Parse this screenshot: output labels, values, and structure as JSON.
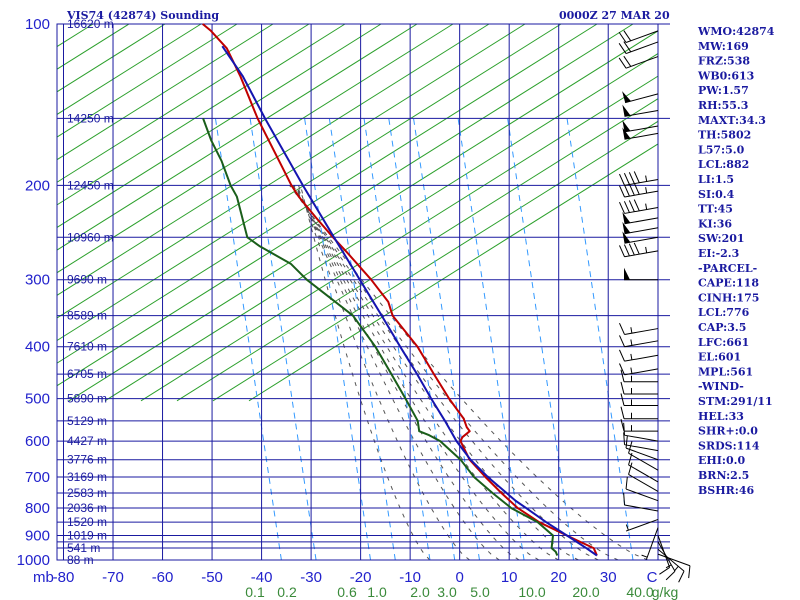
{
  "header": {
    "station_title": "VIS74 (42874) Sounding",
    "time_title": "0000Z 27 MAR 20"
  },
  "colors": {
    "grid": "#1a1aa0",
    "dry_adiabat": "#2ca02c",
    "moist_adiabat": "#555555",
    "mixing_ratio": "#3399ff",
    "temperature": "#c00000",
    "dewpoint": "#1a5e1a",
    "parcel": "#1515b0",
    "mixing_label": "#3a8a3a"
  },
  "chart_data": {
    "type": "line",
    "title": "VIS74 (42874) Sounding",
    "xlabel": "",
    "ylabel": "mb",
    "x_unit_label": "C",
    "xlim": [
      -80,
      35
    ],
    "ylim": [
      1000,
      100
    ],
    "log_y": true,
    "grid": true,
    "pressure_ticks": [
      100,
      200,
      300,
      400,
      500,
      600,
      700,
      800,
      900,
      1000
    ],
    "pressure_minor_lines": [
      150,
      250,
      350,
      450,
      550,
      650,
      750,
      850,
      925,
      950
    ],
    "temp_ticks": [
      -80,
      -70,
      -60,
      -50,
      -40,
      -30,
      -20,
      -10,
      0,
      10,
      20,
      30
    ],
    "temp_tick_labels": [
      "-80",
      "-70",
      "-60",
      "-50",
      "-40",
      "-30",
      "-20",
      "-10",
      "0",
      "10",
      "20",
      "30",
      "C"
    ],
    "mixing_ratio_labels": [
      "0.1",
      "0.2",
      "0.6",
      "1.0",
      "2.0",
      "3.0",
      "5.0",
      "10.0",
      "20.0",
      "40.0",
      "g/kg"
    ],
    "height_labels": [
      {
        "p": 100,
        "label": "16620 m"
      },
      {
        "p": 150,
        "label": "14250 m"
      },
      {
        "p": 200,
        "label": "12450 m"
      },
      {
        "p": 250,
        "label": "10960 m"
      },
      {
        "p": 300,
        "label": "9690 m"
      },
      {
        "p": 350,
        "label": "8589 m"
      },
      {
        "p": 400,
        "label": "7610 m"
      },
      {
        "p": 450,
        "label": "6705 m"
      },
      {
        "p": 500,
        "label": "5890 m"
      },
      {
        "p": 550,
        "label": "5129 m"
      },
      {
        "p": 600,
        "label": "4427 m"
      },
      {
        "p": 650,
        "label": "3776 m"
      },
      {
        "p": 700,
        "label": "3169 m"
      },
      {
        "p": 750,
        "label": "2583 m"
      },
      {
        "p": 800,
        "label": "2036 m"
      },
      {
        "p": 850,
        "label": "1520 m"
      },
      {
        "p": 900,
        "label": "1019 m"
      },
      {
        "p": 950,
        "label": "541 m"
      },
      {
        "p": 1000,
        "label": "88 m"
      }
    ],
    "series": [
      {
        "key": "temperature",
        "points": [
          [
            981,
            27.5
          ],
          [
            965,
            27
          ],
          [
            950,
            26.5
          ],
          [
            925,
            23.5
          ],
          [
            900,
            20.5
          ],
          [
            850,
            14.3
          ],
          [
            800,
            9.3
          ],
          [
            750,
            5.3
          ],
          [
            700,
            1.3
          ],
          [
            650,
            -2.7
          ],
          [
            600,
            -5.4
          ],
          [
            590,
            -5.2
          ],
          [
            575,
            -4.0
          ],
          [
            565,
            -4.8
          ],
          [
            545,
            -5.8
          ],
          [
            500,
            -9.7
          ],
          [
            450,
            -13.9
          ],
          [
            400,
            -18.5
          ],
          [
            350,
            -25.0
          ],
          [
            330,
            -26.5
          ],
          [
            300,
            -31.0
          ],
          [
            265,
            -37.5
          ],
          [
            250,
            -40.7
          ],
          [
            230,
            -45.0
          ],
          [
            210,
            -49.5
          ],
          [
            200,
            -51.5
          ],
          [
            150,
            -61.5
          ],
          [
            125,
            -67
          ],
          [
            111,
            -71
          ],
          [
            103,
            -75
          ],
          [
            100,
            -77
          ]
        ]
      },
      {
        "key": "dewpoint",
        "points": [
          [
            981,
            19.5
          ],
          [
            965,
            19
          ],
          [
            950,
            18.0
          ],
          [
            900,
            17.7
          ],
          [
            850,
            14.0
          ],
          [
            800,
            8.0
          ],
          [
            750,
            3.5
          ],
          [
            700,
            -1.0
          ],
          [
            650,
            -4.5
          ],
          [
            600,
            -9.5
          ],
          [
            585,
            -12.0
          ],
          [
            575,
            -14.2
          ],
          [
            550,
            -15.0
          ],
          [
            500,
            -18.5
          ],
          [
            450,
            -22.5
          ],
          [
            400,
            -27.0
          ],
          [
            350,
            -33.0
          ],
          [
            300,
            -44.0
          ],
          [
            280,
            -48.0
          ],
          [
            260,
            -55.0
          ],
          [
            250,
            -58.0
          ],
          [
            210,
            -62.0
          ],
          [
            200,
            -63.8
          ],
          [
            180,
            -66.8
          ],
          [
            165,
            -69.8
          ],
          [
            150,
            -72.5
          ]
        ]
      },
      {
        "key": "parcel",
        "points": [
          [
            981,
            27.5
          ],
          [
            950,
            25.0
          ],
          [
            900,
            20.5
          ],
          [
            850,
            15.7
          ],
          [
            800,
            11.0
          ],
          [
            776,
            8.6
          ],
          [
            700,
            1.8
          ],
          [
            650,
            -2.5
          ],
          [
            600,
            -6.2
          ],
          [
            550,
            -9.5
          ],
          [
            500,
            -13.3
          ],
          [
            450,
            -17.3
          ],
          [
            400,
            -22.0
          ],
          [
            350,
            -27.2
          ],
          [
            300,
            -33.3
          ],
          [
            250,
            -40.5
          ],
          [
            200,
            -49.2
          ],
          [
            150,
            -60.0
          ],
          [
            125,
            -66.5
          ],
          [
            110,
            -72.0
          ]
        ]
      }
    ]
  },
  "wind_barbs": [
    {
      "p": 975,
      "dir": 110,
      "spd": 10
    },
    {
      "p": 955,
      "dir": 130,
      "spd": 15
    },
    {
      "p": 925,
      "dir": 150,
      "spd": 15
    },
    {
      "p": 900,
      "dir": 160,
      "spd": 10
    },
    {
      "p": 870,
      "dir": 200,
      "spd": 5
    },
    {
      "p": 840,
      "dir": 250,
      "spd": 5
    },
    {
      "p": 810,
      "dir": 280,
      "spd": 10
    },
    {
      "p": 775,
      "dir": 290,
      "spd": 10
    },
    {
      "p": 745,
      "dir": 300,
      "spd": 10
    },
    {
      "p": 715,
      "dir": 300,
      "spd": 10
    },
    {
      "p": 680,
      "dir": 300,
      "spd": 10
    },
    {
      "p": 650,
      "dir": 290,
      "spd": 10
    },
    {
      "p": 625,
      "dir": 280,
      "spd": 10
    },
    {
      "p": 600,
      "dir": 280,
      "spd": 10
    },
    {
      "p": 575,
      "dir": 270,
      "spd": 15
    },
    {
      "p": 545,
      "dir": 270,
      "spd": 15
    },
    {
      "p": 515,
      "dir": 270,
      "spd": 15
    },
    {
      "p": 490,
      "dir": 270,
      "spd": 15
    },
    {
      "p": 465,
      "dir": 270,
      "spd": 15
    },
    {
      "p": 440,
      "dir": 260,
      "spd": 15
    },
    {
      "p": 415,
      "dir": 260,
      "spd": 15
    },
    {
      "p": 390,
      "dir": 260,
      "spd": 15
    },
    {
      "p": 370,
      "dir": 260,
      "spd": 15
    },
    {
      "p": 300,
      "dir": 270,
      "spd": 50
    },
    {
      "p": 265,
      "dir": 260,
      "spd": 45
    },
    {
      "p": 250,
      "dir": 260,
      "spd": 50
    },
    {
      "p": 240,
      "dir": 260,
      "spd": 50
    },
    {
      "p": 230,
      "dir": 260,
      "spd": 50
    },
    {
      "p": 220,
      "dir": 260,
      "spd": 45
    },
    {
      "p": 205,
      "dir": 260,
      "spd": 45
    },
    {
      "p": 195,
      "dir": 260,
      "spd": 45
    },
    {
      "p": 160,
      "dir": 260,
      "spd": 50
    },
    {
      "p": 155,
      "dir": 260,
      "spd": 50
    },
    {
      "p": 145,
      "dir": 260,
      "spd": 50
    },
    {
      "p": 135,
      "dir": 255,
      "spd": 50
    },
    {
      "p": 115,
      "dir": 250,
      "spd": 20
    },
    {
      "p": 108,
      "dir": 250,
      "spd": 20
    },
    {
      "p": 103,
      "dir": 250,
      "spd": 20
    }
  ],
  "indices": [
    "WMO:42874",
    "MW:169",
    "FRZ:538",
    "WB0:613",
    "PW:1.57",
    "RH:55.3",
    "MAXT:34.3",
    "TH:5802",
    "L57:5.0",
    "LCL:882",
    "LI:1.5",
    "SI:0.4",
    "TT:45",
    "KI:36",
    "SW:201",
    "EI:-2.3",
    "-PARCEL-",
    "CAPE:118",
    "CINH:175",
    "LCL:776",
    "CAP:3.5",
    "LFC:661",
    "EL:601",
    "MPL:561",
    "-WIND-",
    "STM:291/11",
    "HEL:33",
    "SHR+:0.0",
    "SRDS:114",
    "EHI:0.0",
    "BRN:2.5",
    "BSHR:46"
  ]
}
